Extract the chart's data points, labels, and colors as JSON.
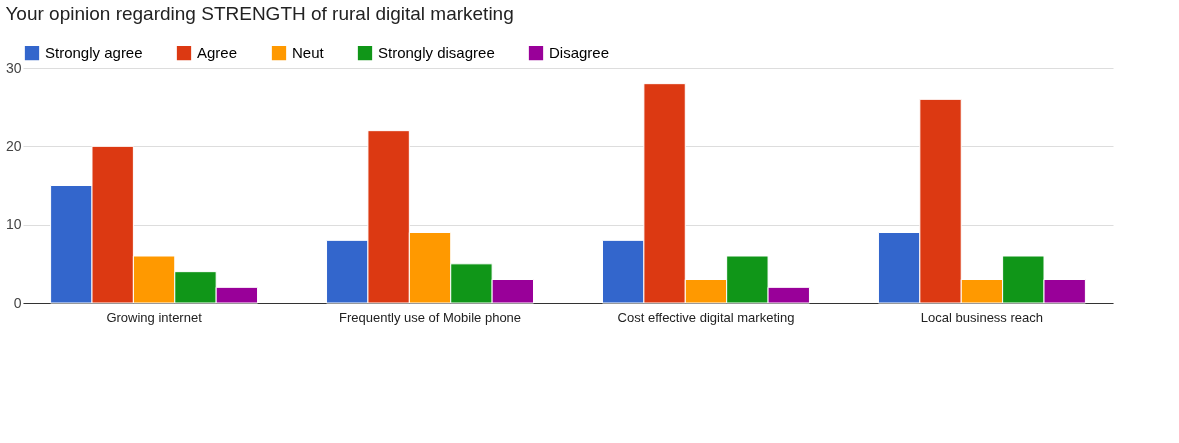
{
  "chart_data": {
    "type": "bar",
    "title": "Your opinion regarding STRENGTH of rural digital marketing",
    "categories": [
      "Growing internet",
      "Frequently use of Mobile phone",
      "Cost effective digital marketing",
      "Local business reach"
    ],
    "series": [
      {
        "name": "Strongly agree",
        "color": "#3366cc",
        "values": [
          15,
          8,
          8,
          9
        ]
      },
      {
        "name": "Agree",
        "color": "#dc3912",
        "values": [
          20,
          22,
          28,
          26
        ]
      },
      {
        "name": "Neut",
        "color": "#ff9900",
        "values": [
          6,
          9,
          3,
          3
        ]
      },
      {
        "name": "Strongly disagree",
        "color": "#109618",
        "values": [
          4,
          5,
          6,
          6
        ]
      },
      {
        "name": "Disagree",
        "color": "#990099",
        "values": [
          2,
          3,
          2,
          3
        ]
      }
    ],
    "ylim": [
      0,
      30
    ],
    "yticks": [
      0,
      10,
      20,
      30
    ],
    "grid": "y",
    "legend": "top"
  }
}
